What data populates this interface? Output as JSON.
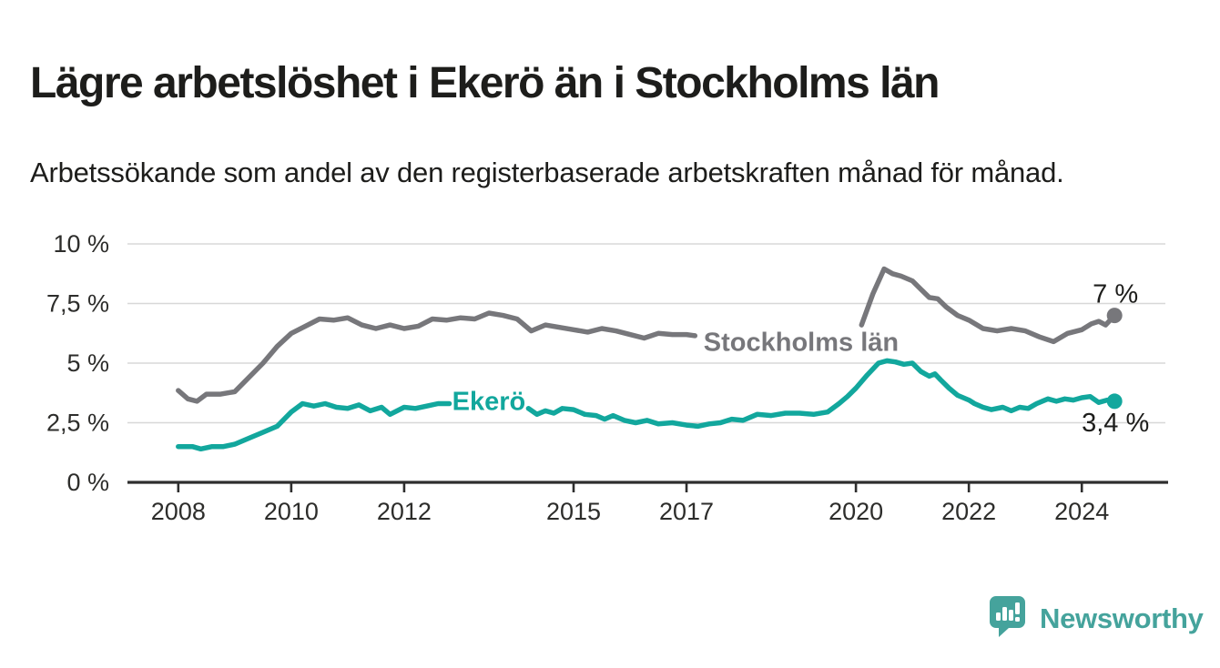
{
  "title": "Lägre arbetslöshet i Ekerö än i Stockholms län",
  "subtitle": "Arbetssökande som andel av den registerbaserade arbetskraften månad för månad.",
  "branding": {
    "logo_text": "Newsworthy",
    "logo_icon": "bar-chart-speech-bubble-icon",
    "brand_color": "#45a39c"
  },
  "colors": {
    "ekero_line": "#12a79d",
    "stockholm_line": "#77777b",
    "dark_text": "#1d1d1b",
    "axis": "#2e2e2e",
    "gridline": "#d8d8d8"
  },
  "chart_data": {
    "type": "line",
    "title": "Lägre arbetslöshet i Ekerö än i Stockholms län",
    "xlabel": "",
    "ylabel": "",
    "grid": "horizontal",
    "legend_position": "inline-labels",
    "x_axis": {
      "range": [
        2007.1,
        2025.48
      ],
      "ticks": [
        {
          "year": 2008,
          "label": "2008"
        },
        {
          "year": 2010,
          "label": "2010"
        },
        {
          "year": 2012,
          "label": "2012"
        },
        {
          "year": 2015,
          "label": "2015"
        },
        {
          "year": 2017,
          "label": "2017"
        },
        {
          "year": 2020,
          "label": "2020"
        },
        {
          "year": 2022,
          "label": "2022"
        },
        {
          "year": 2024,
          "label": "2024"
        }
      ]
    },
    "y_axis": {
      "range": [
        0,
        10
      ],
      "ticks": [
        {
          "value": 0,
          "label": "0 %"
        },
        {
          "value": 2.5,
          "label": "2,5 %"
        },
        {
          "value": 5,
          "label": "5 %"
        },
        {
          "value": 7.5,
          "label": "7,5 %"
        },
        {
          "value": 10,
          "label": "10 %"
        }
      ]
    },
    "series": [
      {
        "name": "Stockholms län",
        "color": "#77777b",
        "end_value": 7.0,
        "end_label": "7 %",
        "end_label_position": "above",
        "inline_label": {
          "text": "Stockholms län",
          "year": 2019.03,
          "value": 5.9
        },
        "label_gaps": [
          [
            2017.18,
            2020.07
          ]
        ],
        "points": [
          [
            2008.0,
            3.85
          ],
          [
            2008.17,
            3.5
          ],
          [
            2008.33,
            3.4
          ],
          [
            2008.5,
            3.7
          ],
          [
            2008.75,
            3.7
          ],
          [
            2009.0,
            3.8
          ],
          [
            2009.25,
            4.4
          ],
          [
            2009.5,
            5.0
          ],
          [
            2009.75,
            5.7
          ],
          [
            2010.0,
            6.25
          ],
          [
            2010.25,
            6.55
          ],
          [
            2010.5,
            6.85
          ],
          [
            2010.75,
            6.8
          ],
          [
            2011.0,
            6.9
          ],
          [
            2011.25,
            6.6
          ],
          [
            2011.5,
            6.45
          ],
          [
            2011.75,
            6.6
          ],
          [
            2012.0,
            6.45
          ],
          [
            2012.25,
            6.55
          ],
          [
            2012.5,
            6.85
          ],
          [
            2012.75,
            6.8
          ],
          [
            2013.0,
            6.9
          ],
          [
            2013.25,
            6.85
          ],
          [
            2013.5,
            7.1
          ],
          [
            2013.75,
            7.0
          ],
          [
            2014.0,
            6.85
          ],
          [
            2014.25,
            6.35
          ],
          [
            2014.5,
            6.6
          ],
          [
            2014.75,
            6.5
          ],
          [
            2015.0,
            6.4
          ],
          [
            2015.25,
            6.3
          ],
          [
            2015.5,
            6.45
          ],
          [
            2015.75,
            6.35
          ],
          [
            2016.0,
            6.2
          ],
          [
            2016.25,
            6.05
          ],
          [
            2016.5,
            6.25
          ],
          [
            2016.75,
            6.2
          ],
          [
            2017.0,
            6.2
          ],
          [
            2017.15,
            6.15
          ],
          [
            2017.5,
            6.05
          ],
          [
            2018.0,
            5.95
          ],
          [
            2018.5,
            5.9
          ],
          [
            2019.0,
            5.9
          ],
          [
            2019.5,
            6.0
          ],
          [
            2019.9,
            6.3
          ],
          [
            2020.1,
            6.6
          ],
          [
            2020.3,
            7.9
          ],
          [
            2020.5,
            8.95
          ],
          [
            2020.65,
            8.75
          ],
          [
            2020.8,
            8.65
          ],
          [
            2021.0,
            8.45
          ],
          [
            2021.15,
            8.1
          ],
          [
            2021.3,
            7.75
          ],
          [
            2021.45,
            7.7
          ],
          [
            2021.6,
            7.35
          ],
          [
            2021.8,
            7.0
          ],
          [
            2022.0,
            6.8
          ],
          [
            2022.25,
            6.45
          ],
          [
            2022.5,
            6.35
          ],
          [
            2022.75,
            6.45
          ],
          [
            2023.0,
            6.35
          ],
          [
            2023.25,
            6.1
          ],
          [
            2023.5,
            5.9
          ],
          [
            2023.75,
            6.25
          ],
          [
            2024.0,
            6.4
          ],
          [
            2024.17,
            6.65
          ],
          [
            2024.3,
            6.75
          ],
          [
            2024.42,
            6.6
          ],
          [
            2024.58,
            7.0
          ]
        ]
      },
      {
        "name": "Ekerö",
        "color": "#12a79d",
        "end_value": 3.4,
        "end_label": "3,4 %",
        "end_label_position": "below",
        "inline_label": {
          "text": "Ekerö",
          "year": 2013.5,
          "value": 3.42
        },
        "label_gaps": [
          [
            2012.83,
            2014.17
          ]
        ],
        "points": [
          [
            2008.0,
            1.5
          ],
          [
            2008.25,
            1.5
          ],
          [
            2008.4,
            1.4
          ],
          [
            2008.6,
            1.5
          ],
          [
            2008.8,
            1.5
          ],
          [
            2009.0,
            1.6
          ],
          [
            2009.25,
            1.85
          ],
          [
            2009.5,
            2.1
          ],
          [
            2009.75,
            2.35
          ],
          [
            2010.0,
            2.95
          ],
          [
            2010.2,
            3.3
          ],
          [
            2010.4,
            3.2
          ],
          [
            2010.6,
            3.3
          ],
          [
            2010.8,
            3.15
          ],
          [
            2011.0,
            3.1
          ],
          [
            2011.2,
            3.25
          ],
          [
            2011.4,
            3.0
          ],
          [
            2011.6,
            3.15
          ],
          [
            2011.75,
            2.85
          ],
          [
            2012.0,
            3.15
          ],
          [
            2012.2,
            3.1
          ],
          [
            2012.4,
            3.2
          ],
          [
            2012.6,
            3.3
          ],
          [
            2012.8,
            3.3
          ],
          [
            2013.0,
            3.3
          ],
          [
            2013.3,
            3.35
          ],
          [
            2013.6,
            3.25
          ],
          [
            2013.9,
            3.0
          ],
          [
            2014.2,
            3.1
          ],
          [
            2014.35,
            2.85
          ],
          [
            2014.5,
            3.0
          ],
          [
            2014.65,
            2.9
          ],
          [
            2014.8,
            3.1
          ],
          [
            2015.0,
            3.05
          ],
          [
            2015.2,
            2.85
          ],
          [
            2015.4,
            2.8
          ],
          [
            2015.55,
            2.65
          ],
          [
            2015.7,
            2.8
          ],
          [
            2015.9,
            2.6
          ],
          [
            2016.1,
            2.5
          ],
          [
            2016.3,
            2.6
          ],
          [
            2016.5,
            2.45
          ],
          [
            2016.75,
            2.5
          ],
          [
            2017.0,
            2.4
          ],
          [
            2017.2,
            2.35
          ],
          [
            2017.4,
            2.45
          ],
          [
            2017.6,
            2.5
          ],
          [
            2017.8,
            2.65
          ],
          [
            2018.0,
            2.6
          ],
          [
            2018.25,
            2.85
          ],
          [
            2018.5,
            2.8
          ],
          [
            2018.75,
            2.9
          ],
          [
            2019.0,
            2.9
          ],
          [
            2019.25,
            2.85
          ],
          [
            2019.5,
            2.95
          ],
          [
            2019.7,
            3.3
          ],
          [
            2019.85,
            3.6
          ],
          [
            2020.0,
            3.95
          ],
          [
            2020.2,
            4.5
          ],
          [
            2020.4,
            5.0
          ],
          [
            2020.55,
            5.1
          ],
          [
            2020.7,
            5.05
          ],
          [
            2020.85,
            4.95
          ],
          [
            2021.0,
            5.0
          ],
          [
            2021.15,
            4.65
          ],
          [
            2021.3,
            4.45
          ],
          [
            2021.4,
            4.55
          ],
          [
            2021.5,
            4.3
          ],
          [
            2021.65,
            3.95
          ],
          [
            2021.8,
            3.65
          ],
          [
            2022.0,
            3.45
          ],
          [
            2022.1,
            3.3
          ],
          [
            2022.25,
            3.15
          ],
          [
            2022.4,
            3.05
          ],
          [
            2022.6,
            3.15
          ],
          [
            2022.75,
            3.0
          ],
          [
            2022.9,
            3.15
          ],
          [
            2023.05,
            3.1
          ],
          [
            2023.2,
            3.3
          ],
          [
            2023.4,
            3.5
          ],
          [
            2023.55,
            3.4
          ],
          [
            2023.7,
            3.5
          ],
          [
            2023.85,
            3.45
          ],
          [
            2024.0,
            3.55
          ],
          [
            2024.15,
            3.6
          ],
          [
            2024.3,
            3.35
          ],
          [
            2024.45,
            3.45
          ],
          [
            2024.58,
            3.4
          ]
        ]
      }
    ]
  }
}
